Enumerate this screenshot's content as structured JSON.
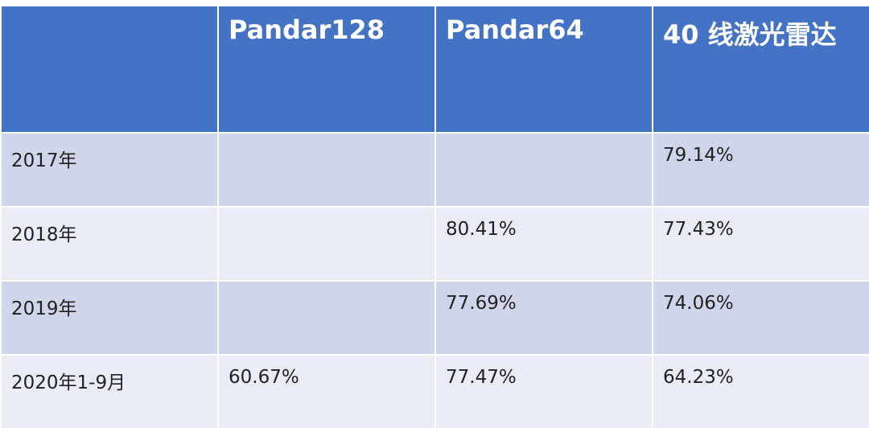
{
  "table": {
    "header": [
      "Pandar128",
      "Pandar64",
      "40 线激光雷达"
    ],
    "rows": [
      [
        "2017年",
        null,
        null,
        "79.14%"
      ],
      [
        "2018年",
        null,
        "80.41%",
        "77.43%"
      ],
      [
        "2019年",
        null,
        "77.69%",
        "74.06%"
      ],
      [
        "2020年1-9月",
        "60.67%",
        "77.47%",
        "64.23%"
      ]
    ]
  }
}
